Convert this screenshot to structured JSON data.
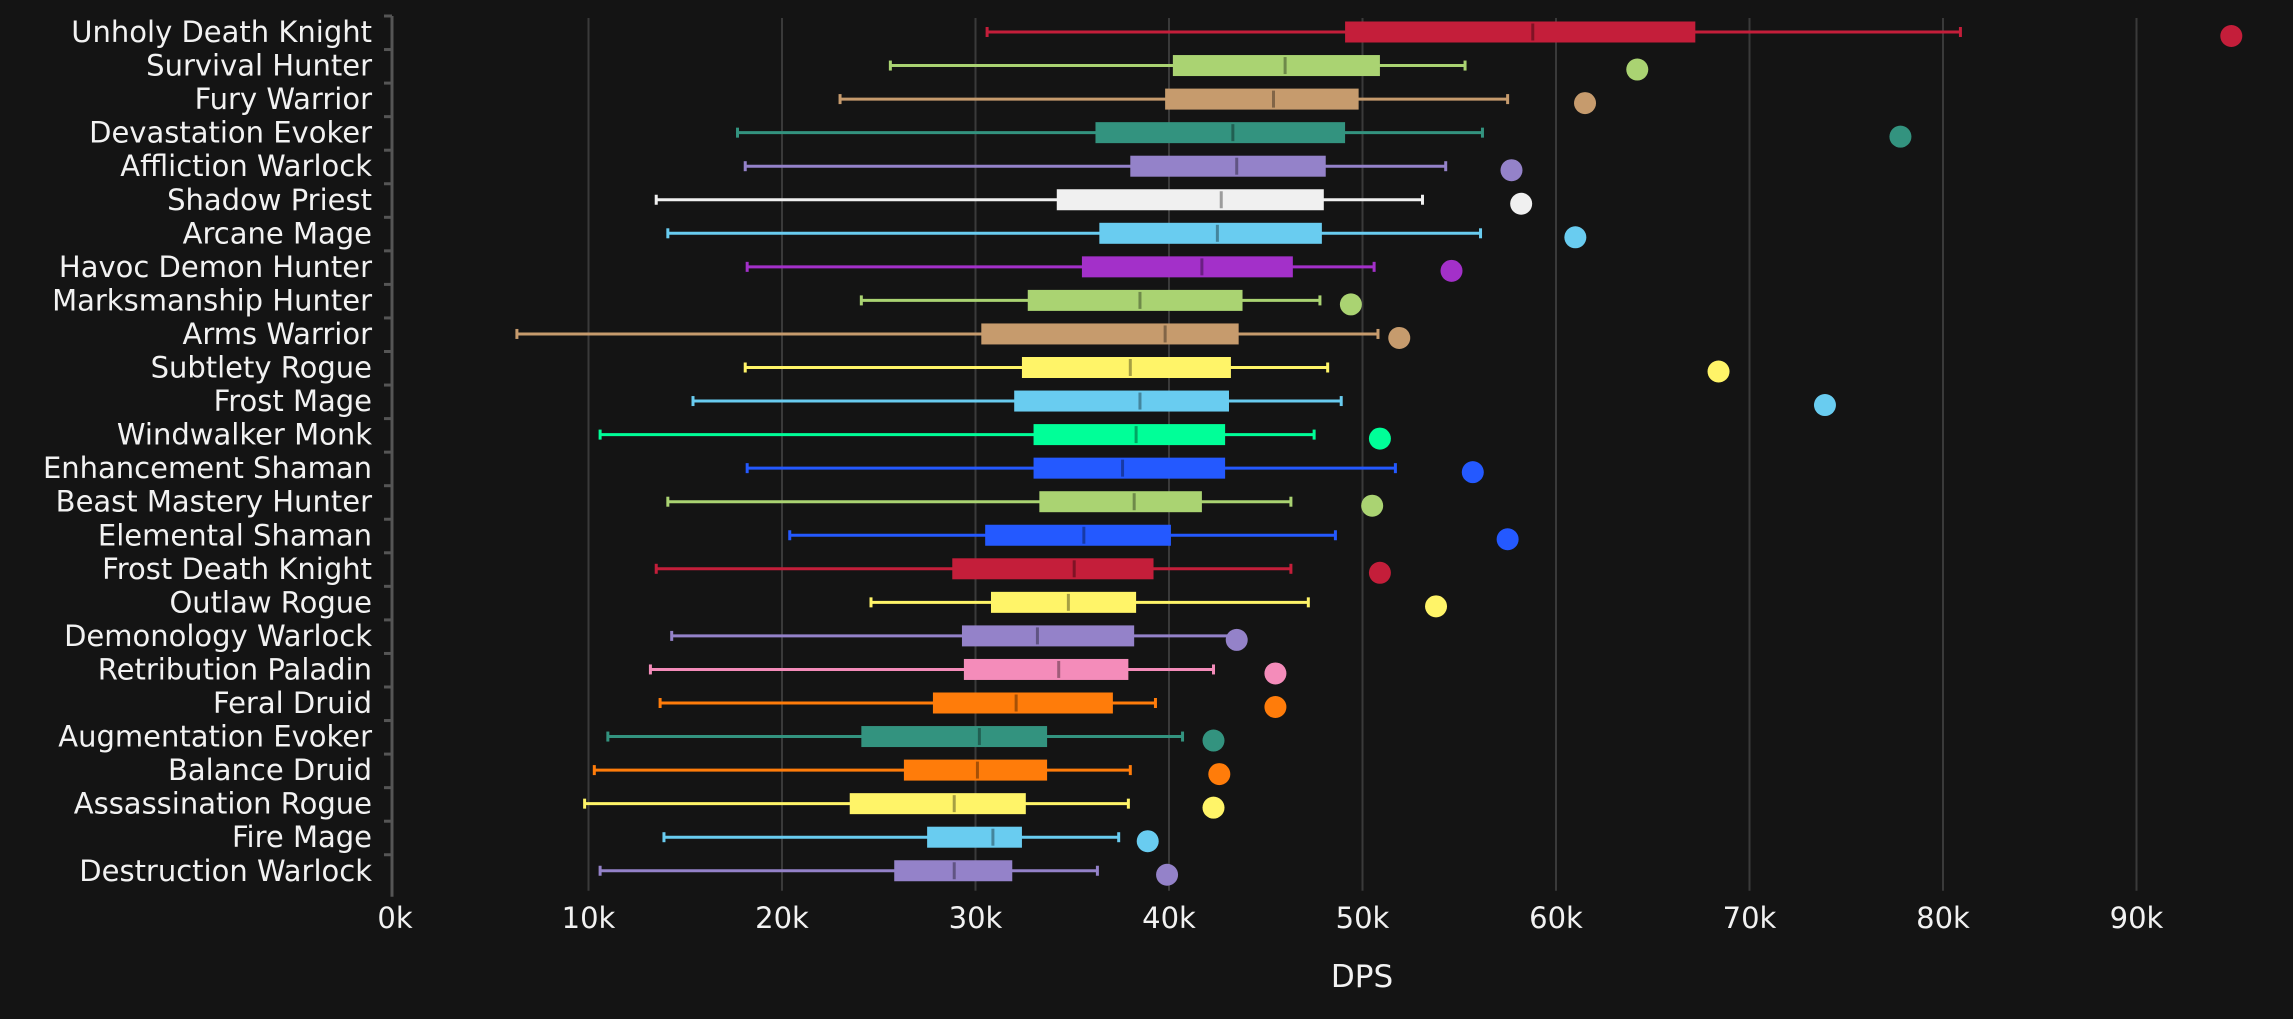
{
  "chart_data": {
    "type": "boxplot",
    "title": "",
    "xlabel": "DPS",
    "ylabel": "",
    "xlim": [
      0,
      100000
    ],
    "x_ticks": [
      "0k",
      "10k",
      "20k",
      "30k",
      "40k",
      "50k",
      "60k",
      "70k",
      "80k",
      "90k"
    ],
    "grid": true,
    "legend": "none",
    "series": [
      {
        "name": "Unholy Death Knight",
        "color": "#C41E3A",
        "min": 30600,
        "q1": 49100,
        "median": 58800,
        "q3": 67200,
        "max": 80900,
        "outlier": 94900
      },
      {
        "name": "Survival Hunter",
        "color": "#AAD372",
        "min": 25600,
        "q1": 40200,
        "median": 46000,
        "q3": 50900,
        "max": 55300,
        "outlier": 64200
      },
      {
        "name": "Fury Warrior",
        "color": "#C69B6D",
        "min": 23000,
        "q1": 39800,
        "median": 45400,
        "q3": 49800,
        "max": 57500,
        "outlier": 61500
      },
      {
        "name": "Devastation Evoker",
        "color": "#33937F",
        "min": 17700,
        "q1": 36200,
        "median": 43300,
        "q3": 49100,
        "max": 56200,
        "outlier": 77800
      },
      {
        "name": "Affliction Warlock",
        "color": "#9482C9",
        "min": 18100,
        "q1": 38000,
        "median": 43500,
        "q3": 48100,
        "max": 54300,
        "outlier": 57700
      },
      {
        "name": "Shadow Priest",
        "color": "#F0F0F0",
        "min": 13500,
        "q1": 34200,
        "median": 42700,
        "q3": 48000,
        "max": 53100,
        "outlier": 58200
      },
      {
        "name": "Arcane Mage",
        "color": "#69CCF0",
        "min": 14100,
        "q1": 36400,
        "median": 42500,
        "q3": 47900,
        "max": 56100,
        "outlier": 61000
      },
      {
        "name": "Havoc Demon Hunter",
        "color": "#A330C9",
        "min": 18200,
        "q1": 35500,
        "median": 41700,
        "q3": 46400,
        "max": 50600,
        "outlier": 54600
      },
      {
        "name": "Marksmanship Hunter",
        "color": "#AAD372",
        "min": 24100,
        "q1": 32700,
        "median": 38500,
        "q3": 43800,
        "max": 47800,
        "outlier": 49400
      },
      {
        "name": "Arms Warrior",
        "color": "#C69B6D",
        "min": 6300,
        "q1": 30300,
        "median": 39800,
        "q3": 43600,
        "max": 50800,
        "outlier": 51900
      },
      {
        "name": "Subtlety Rogue",
        "color": "#FFF468",
        "min": 18100,
        "q1": 32400,
        "median": 38000,
        "q3": 43200,
        "max": 48200,
        "outlier": 68400
      },
      {
        "name": "Frost Mage",
        "color": "#69CCF0",
        "min": 15400,
        "q1": 32000,
        "median": 38500,
        "q3": 43100,
        "max": 48900,
        "outlier": 73900
      },
      {
        "name": "Windwalker Monk",
        "color": "#00FF98",
        "min": 10600,
        "q1": 33000,
        "median": 38300,
        "q3": 42900,
        "max": 47500,
        "outlier": 50900
      },
      {
        "name": "Enhancement Shaman",
        "color": "#2459FF",
        "min": 18200,
        "q1": 33000,
        "median": 37600,
        "q3": 42900,
        "max": 51700,
        "outlier": 55700
      },
      {
        "name": "Beast Mastery Hunter",
        "color": "#AAD372",
        "min": 14100,
        "q1": 33300,
        "median": 38200,
        "q3": 41700,
        "max": 46300,
        "outlier": 50500
      },
      {
        "name": "Elemental Shaman",
        "color": "#2459FF",
        "min": 20400,
        "q1": 30500,
        "median": 35600,
        "q3": 40100,
        "max": 48600,
        "outlier": 57500
      },
      {
        "name": "Frost Death Knight",
        "color": "#C41E3A",
        "min": 13500,
        "q1": 28800,
        "median": 35100,
        "q3": 39200,
        "max": 46300,
        "outlier": 50900
      },
      {
        "name": "Outlaw Rogue",
        "color": "#FFF468",
        "min": 24600,
        "q1": 30800,
        "median": 34800,
        "q3": 38300,
        "max": 47200,
        "outlier": 53800
      },
      {
        "name": "Demonology Warlock",
        "color": "#9482C9",
        "min": 14300,
        "q1": 29300,
        "median": 33200,
        "q3": 38200,
        "max": 43300,
        "outlier": 43500
      },
      {
        "name": "Retribution Paladin",
        "color": "#F48CBA",
        "min": 13200,
        "q1": 29400,
        "median": 34300,
        "q3": 37900,
        "max": 42300,
        "outlier": 45500
      },
      {
        "name": "Feral Druid",
        "color": "#FF7C0A",
        "min": 13700,
        "q1": 27800,
        "median": 32100,
        "q3": 37100,
        "max": 39300,
        "outlier": 45500
      },
      {
        "name": "Augmentation Evoker",
        "color": "#33937F",
        "min": 11000,
        "q1": 24100,
        "median": 30200,
        "q3": 33700,
        "max": 40700,
        "outlier": 42300
      },
      {
        "name": "Balance Druid",
        "color": "#FF7C0A",
        "min": 10300,
        "q1": 26300,
        "median": 30100,
        "q3": 33700,
        "max": 38000,
        "outlier": 42600
      },
      {
        "name": "Assassination Rogue",
        "color": "#FFF468",
        "min": 9800,
        "q1": 23500,
        "median": 28900,
        "q3": 32600,
        "max": 37900,
        "outlier": 42300
      },
      {
        "name": "Fire Mage",
        "color": "#69CCF0",
        "min": 13900,
        "q1": 27500,
        "median": 30900,
        "q3": 32400,
        "max": 37400,
        "outlier": 38900
      },
      {
        "name": "Destruction Warlock",
        "color": "#9482C9",
        "min": 10600,
        "q1": 25800,
        "median": 28900,
        "q3": 31900,
        "max": 36300,
        "outlier": 39900
      }
    ]
  }
}
